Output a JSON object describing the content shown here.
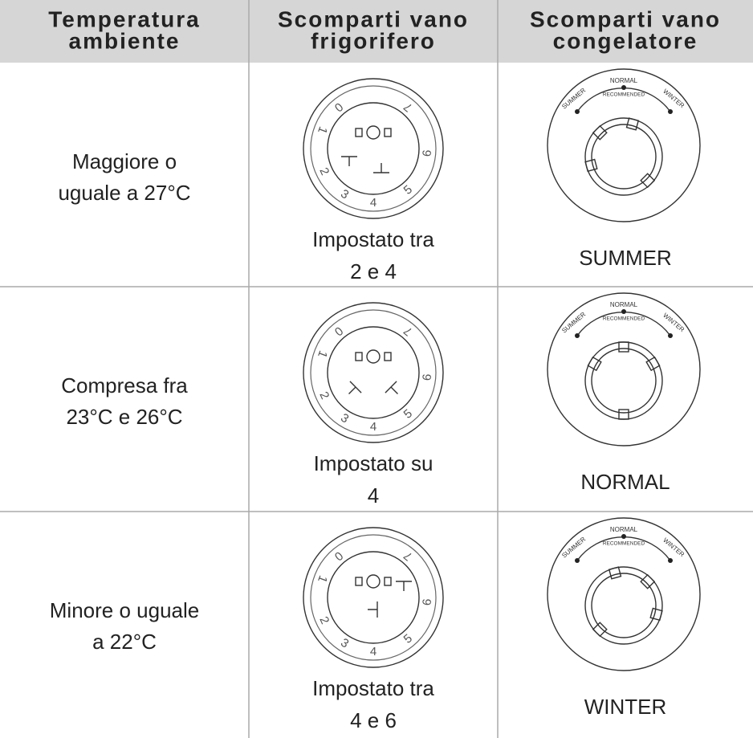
{
  "header": [
    [
      "Temperatura",
      "ambiente"
    ],
    [
      "Scomparti vano",
      "frigorifero"
    ],
    [
      "Scomparti vano",
      "congelatore"
    ]
  ],
  "rows": [
    {
      "ambient": [
        "Maggiore o",
        "uguale a 27°C"
      ],
      "fridge": [
        "Impostato tra",
        "2 e 4"
      ],
      "freezer": "SUMMER"
    },
    {
      "ambient": [
        "Compresa fra",
        "23°C e 26°C"
      ],
      "fridge": [
        "Impostato su",
        "4"
      ],
      "freezer": "NORMAL"
    },
    {
      "ambient": [
        "Minore o uguale",
        "a 22°C"
      ],
      "fridge": [
        "Impostato tra",
        "4 e 6"
      ],
      "freezer": "WINTER"
    }
  ],
  "fridge_dial_labels": [
    "0",
    "1",
    "2",
    "3",
    "4",
    "5",
    "6",
    "7"
  ],
  "freezer_dial_labels": {
    "left": "SUMMER",
    "top": "NORMAL",
    "sub": "RECOMMENDED",
    "right": "WINTER"
  }
}
